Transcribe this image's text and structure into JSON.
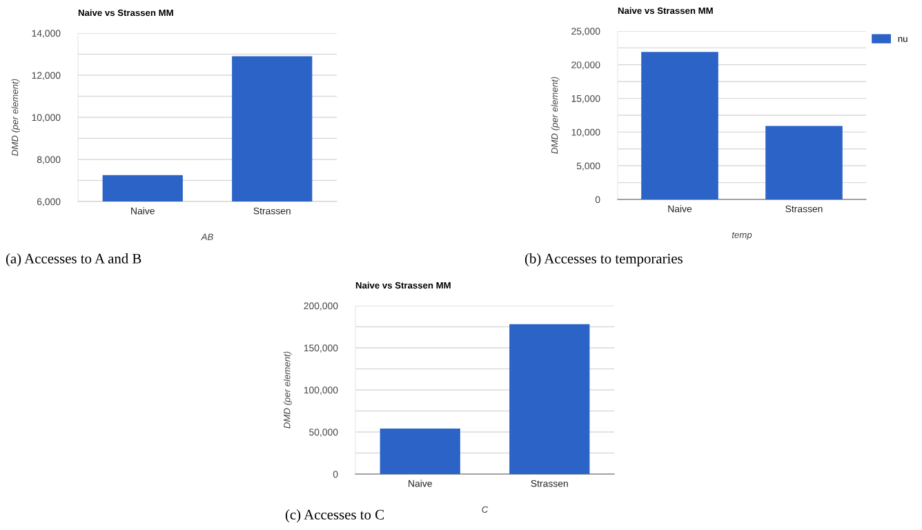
{
  "chart_data": [
    {
      "type": "bar",
      "title": "Naive vs Strassen MM",
      "ylabel": "DMD (per element)",
      "xlabel": "AB",
      "categories": [
        "Naive",
        "Strassen"
      ],
      "series": [
        {
          "color": "#2c63c6",
          "values": [
            7250,
            12900
          ]
        }
      ],
      "ylim": [
        6000,
        14000
      ],
      "yticks": [
        {
          "value": 6000,
          "label": "6,000"
        },
        {
          "value": 7000,
          "label": null
        },
        {
          "value": 8000,
          "label": "8,000"
        },
        {
          "value": 9000,
          "label": null
        },
        {
          "value": 10000,
          "label": "10,000"
        },
        {
          "value": 11000,
          "label": null
        },
        {
          "value": 12000,
          "label": "12,000"
        },
        {
          "value": 13000,
          "label": null
        },
        {
          "value": 14000,
          "label": "14,000"
        }
      ],
      "grid": "y",
      "legend": false,
      "annotations": [
        "(a) Accesses to A and B"
      ]
    },
    {
      "type": "bar",
      "title": "Naive vs Strassen MM",
      "ylabel": "DMD (per element)",
      "xlabel": "temp",
      "categories": [
        "Naive",
        "Strassen"
      ],
      "series": [
        {
          "name": "nu",
          "color": "#2c63c6",
          "values": [
            21900,
            10900
          ]
        }
      ],
      "ylim": [
        0,
        25000
      ],
      "yticks": [
        0,
        {
          "value": 2500,
          "label": null
        },
        {
          "value": 5000,
          "label": "5,000"
        },
        {
          "value": 7500,
          "label": null
        },
        {
          "value": 10000,
          "label": "10,000"
        },
        {
          "value": 12500,
          "label": null
        },
        {
          "value": 15000,
          "label": "15,000"
        },
        {
          "value": 17500,
          "label": null
        },
        {
          "value": 20000,
          "label": "20,000"
        },
        {
          "value": 22500,
          "label": null
        },
        {
          "value": 25000,
          "label": "25,000"
        }
      ],
      "grid": "y",
      "legend": "top right",
      "annotations": [
        "(b) Accesses to temporaries"
      ]
    },
    {
      "type": "bar",
      "title": "Naive vs Strassen MM",
      "ylabel": "DMD (per element)",
      "xlabel": "C",
      "categories": [
        "Naive",
        "Strassen"
      ],
      "series": [
        {
          "color": "#2c63c6",
          "values": [
            54000,
            178000
          ]
        }
      ],
      "ylim": [
        0,
        200000
      ],
      "yticks": [
        0,
        {
          "value": 25000,
          "label": null
        },
        {
          "value": 50000,
          "label": "50,000"
        },
        {
          "value": 75000,
          "label": null
        },
        {
          "value": 100000,
          "label": "100,000"
        },
        {
          "value": 125000,
          "label": null
        },
        {
          "value": 150000,
          "label": "150,000"
        },
        {
          "value": 175000,
          "label": null
        },
        {
          "value": 200000,
          "label": "200,000"
        }
      ],
      "grid": "y",
      "legend": false,
      "annotations": [
        "(c) Accesses to C"
      ]
    }
  ]
}
